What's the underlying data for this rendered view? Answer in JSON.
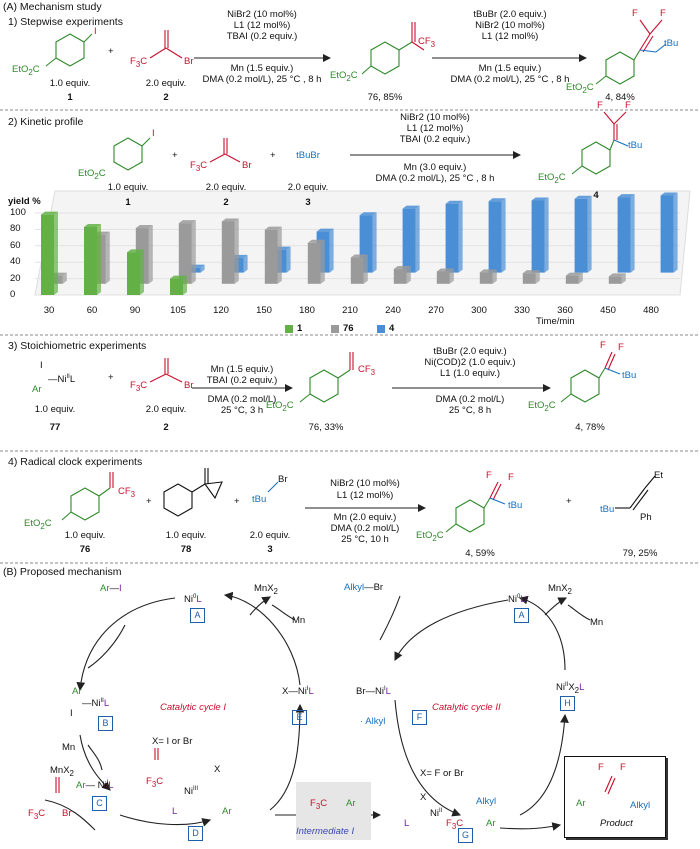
{
  "sections": {
    "A": "(A) Mechanism study",
    "s1": "1) Stepwise experiments",
    "s2": "2) Kinetic profile",
    "s3": "3) Stoichiometric experiments",
    "s4": "4) Radical clock experiments",
    "B": "(B) Proposed mechanism"
  },
  "sec1": {
    "eq1": "1.0 equiv.",
    "n1": "1",
    "eq2": "2.0 equiv.",
    "n2": "2",
    "c1": [
      "NiBr2 (10 mol%)",
      "L1 (12 mol%)",
      "TBAI (0.2 equiv.)"
    ],
    "c1b": [
      "Mn (1.5 equiv.)",
      "DMA (0.2 mol/L), 25 °C , 8 h"
    ],
    "p76": "76, 85%",
    "c2": [
      "tBuBr (2.0 equiv.)",
      "NiBr2 (10 mol%)",
      "L1 (12 mol%)"
    ],
    "c2b": [
      "Mn (1.5 equiv.)",
      "DMA (0.2 mol/L), 25 °C , 8 h"
    ],
    "p4": "4, 84%"
  },
  "sec2": {
    "eq1": "1.0 equiv.",
    "n1": "1",
    "eq2": "2.0 equiv.",
    "n2": "2",
    "eq3": "2.0 equiv.",
    "n3": "3",
    "tbubr": "tBuBr",
    "c1": [
      "NiBr2 (10 mol%)",
      "L1 (12 mol%)",
      "TBAI (0.2 equiv.)"
    ],
    "c1b": [
      "Mn (3.0 equiv.)",
      "DMA (0.2 mol/L), 25 °C , 8 h"
    ],
    "n4": "4"
  },
  "chart_data": {
    "type": "bar",
    "title": "",
    "ylabel": "yield %",
    "xlabel": "Time/min",
    "ylim": [
      0,
      100
    ],
    "yticks": [
      "0",
      "20",
      "40",
      "60",
      "80",
      "100"
    ],
    "categories": [
      "30",
      "60",
      "90",
      "105",
      "120",
      "150",
      "180",
      "210",
      "240",
      "270",
      "300",
      "330",
      "360",
      "450",
      "480"
    ],
    "series": [
      {
        "name": "1",
        "color": "#62b046",
        "values": [
          98,
          83,
          52,
          20,
          0,
          0,
          0,
          0,
          0,
          0,
          0,
          0,
          0,
          0,
          0
        ]
      },
      {
        "name": "76",
        "color": "#9a9a9a",
        "values": [
          10,
          60,
          68,
          74,
          76,
          66,
          50,
          32,
          18,
          15,
          14,
          13,
          10,
          9,
          0
        ]
      },
      {
        "name": "4",
        "color": "#4a8ed6",
        "values": [
          0,
          0,
          0,
          6,
          18,
          28,
          50,
          70,
          78,
          84,
          87,
          88,
          90,
          92,
          94
        ]
      }
    ],
    "legend": "bottom"
  },
  "sec3": {
    "nil": "I—NiIIL",
    "ar": "Ar",
    "eq77": "1.0 equiv.",
    "n77": "77",
    "eq2": "2.0 equiv.",
    "n2": "2",
    "c1": [
      "Mn (1.5 equiv.)",
      "TBAI (0.2 equiv.)"
    ],
    "c1b": [
      "DMA (0.2 mol/L)",
      "25 °C, 3 h"
    ],
    "p76": "76, 33%",
    "c2": [
      "tBuBr (2.0 equiv.)",
      "Ni(COD)2 (1.0 equiv.)",
      "L1 (1.0 equiv.)"
    ],
    "c2b": [
      "DMA (0.2 mol/L)",
      "25 °C, 8 h"
    ],
    "p4": "4, 78%"
  },
  "sec4": {
    "eq76": "1.0 equiv.",
    "n76": "76",
    "eq78": "1.0 equiv.",
    "n78": "78",
    "eq3": "2.0 equiv.",
    "n3": "3",
    "c1": [
      "NiBr2 (10 mol%)",
      "L1 (12 mol%)"
    ],
    "c1b": [
      "Mn (2.0 equiv.)",
      "DMA (0.2 mol/L)",
      "25 °C, 10 h"
    ],
    "p4": "4, 59%",
    "p79": "79, 25%",
    "et": "Et",
    "ph": "Ph",
    "tbu": "tBu"
  },
  "mech": {
    "arI": "Ar—I",
    "ni0": "Ni0L",
    "mnx2": "MnX2",
    "mn": "Mn",
    "arNiII": "ArNiIIL / I",
    "arNiI": "Ar—NiIL",
    "xNiIL": "X—NiIL",
    "cycle1": "Catalytic cycle I",
    "cycle2": "Catalytic cycle II",
    "xeq": "X= I or Br",
    "xeq2": "X= F or Br",
    "alkylbr": "Alkyl—Br",
    "brNi": "Br—NiIL",
    "alkylRad": "· Alkyl",
    "niIIX2L": "NiIIX2L",
    "inter": "Intermediate I",
    "product": "Product",
    "boxes": [
      "A",
      "B",
      "C",
      "D",
      "E",
      "A",
      "F",
      "G",
      "H"
    ]
  }
}
